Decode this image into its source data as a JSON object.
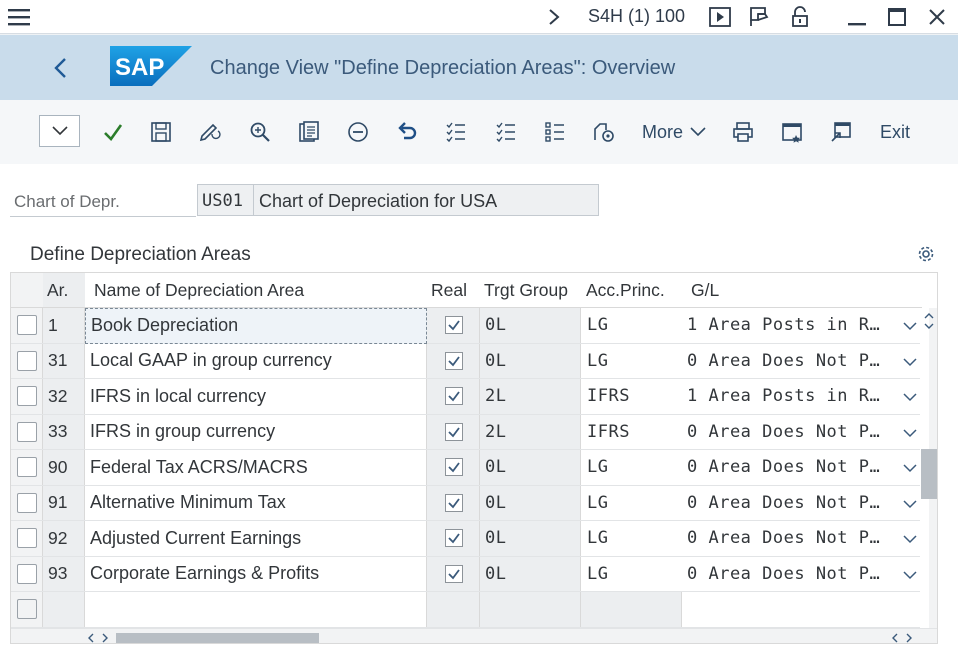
{
  "window": {
    "system_info": "S4H (1) 100",
    "icons": [
      "menu-icon",
      "chevron-right-icon",
      "play-icon",
      "layout-icon",
      "lock-icon",
      "minimize-icon",
      "maximize-icon",
      "close-icon"
    ]
  },
  "header": {
    "title": "Change View \"Define Depreciation Areas\": Overview",
    "logo_text": "SAP"
  },
  "toolbar": {
    "more_label": "More",
    "exit_label": "Exit",
    "icons": [
      "check-icon",
      "save-icon",
      "edit-icon",
      "zoom-icon",
      "details-icon",
      "delete-icon",
      "undo-icon",
      "select-all-icon",
      "deselect-all-icon",
      "select-block-icon",
      "configure-icon",
      "print-icon",
      "new-window-icon",
      "shortcut-icon"
    ]
  },
  "header_fields": {
    "label": "Chart of Depr.",
    "code": "US01",
    "description": "Chart of Depreciation for USA"
  },
  "section": {
    "title": "Define Depreciation Areas"
  },
  "table": {
    "columns": [
      "Ar.",
      "Name of Depreciation Area",
      "Real",
      "Trgt Group",
      "Acc.Princ.",
      "G/L"
    ],
    "rows": [
      {
        "ar": "1",
        "name": "Book Depreciation",
        "real": true,
        "trgt": "0L",
        "acc": "LG",
        "gl": "1 Area Posts in R…"
      },
      {
        "ar": "31",
        "name": "Local GAAP in group currency",
        "real": true,
        "trgt": "0L",
        "acc": "LG",
        "gl": "0 Area Does Not P…"
      },
      {
        "ar": "32",
        "name": "IFRS in local currency",
        "real": true,
        "trgt": "2L",
        "acc": "IFRS",
        "gl": "1 Area Posts in R…"
      },
      {
        "ar": "33",
        "name": "IFRS in group currency",
        "real": true,
        "trgt": "2L",
        "acc": "IFRS",
        "gl": "0 Area Does Not P…"
      },
      {
        "ar": "90",
        "name": "Federal Tax ACRS/MACRS",
        "real": true,
        "trgt": "0L",
        "acc": "LG",
        "gl": "0 Area Does Not P…"
      },
      {
        "ar": "91",
        "name": "Alternative Minimum Tax",
        "real": true,
        "trgt": "0L",
        "acc": "LG",
        "gl": "0 Area Does Not P…"
      },
      {
        "ar": "92",
        "name": "Adjusted Current Earnings",
        "real": true,
        "trgt": "0L",
        "acc": "LG",
        "gl": "0 Area Does Not P…"
      },
      {
        "ar": "93",
        "name": "Corporate Earnings & Profits",
        "real": true,
        "trgt": "0L",
        "acc": "LG",
        "gl": "0 Area Does Not P…"
      }
    ]
  },
  "colors": {
    "header_bg": "#c9dceb",
    "sap_blue": "#1d8bd8",
    "check_green": "#2b7d2b"
  }
}
